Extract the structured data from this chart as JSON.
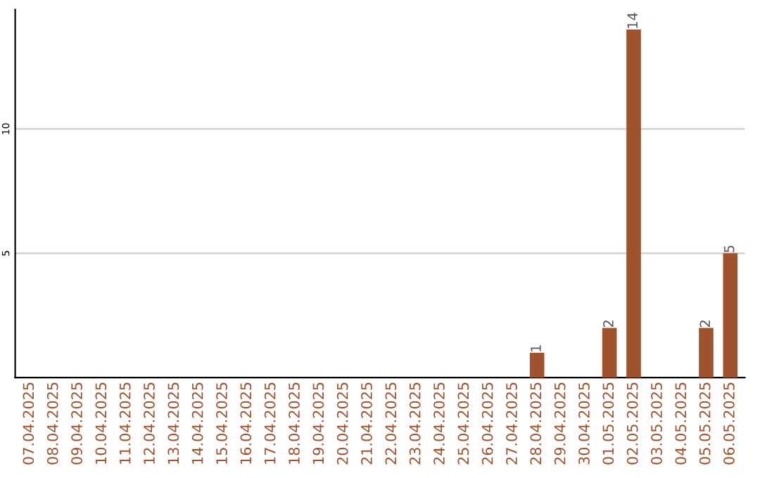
{
  "chart_data": {
    "type": "bar",
    "categories": [
      "07.04.2025",
      "08.04.2025",
      "09.04.2025",
      "10.04.2025",
      "11.04.2025",
      "12.04.2025",
      "13.04.2025",
      "14.04.2025",
      "15.04.2025",
      "16.04.2025",
      "17.04.2025",
      "18.04.2025",
      "19.04.2025",
      "20.04.2025",
      "21.04.2025",
      "22.04.2025",
      "23.04.2025",
      "24.04.2025",
      "25.04.2025",
      "26.04.2025",
      "27.04.2025",
      "28.04.2025",
      "29.04.2025",
      "30.04.2025",
      "01.05.2025",
      "02.05.2025",
      "03.05.2025",
      "04.05.2025",
      "05.05.2025",
      "06.05.2025"
    ],
    "values": [
      0,
      0,
      0,
      0,
      0,
      0,
      0,
      0,
      0,
      0,
      0,
      0,
      0,
      0,
      0,
      0,
      0,
      0,
      0,
      0,
      0,
      1,
      0,
      0,
      2,
      14,
      0,
      0,
      2,
      5
    ],
    "value_labels": [
      null,
      null,
      null,
      null,
      null,
      null,
      null,
      null,
      null,
      null,
      null,
      null,
      null,
      null,
      null,
      null,
      null,
      null,
      null,
      null,
      null,
      "1",
      null,
      null,
      "2",
      "14",
      null,
      null,
      "2",
      "5"
    ],
    "color": "#a0522d",
    "ylim": [
      0,
      14.8
    ],
    "yticks": [
      5,
      10
    ],
    "grid": "y",
    "legend": false
  }
}
